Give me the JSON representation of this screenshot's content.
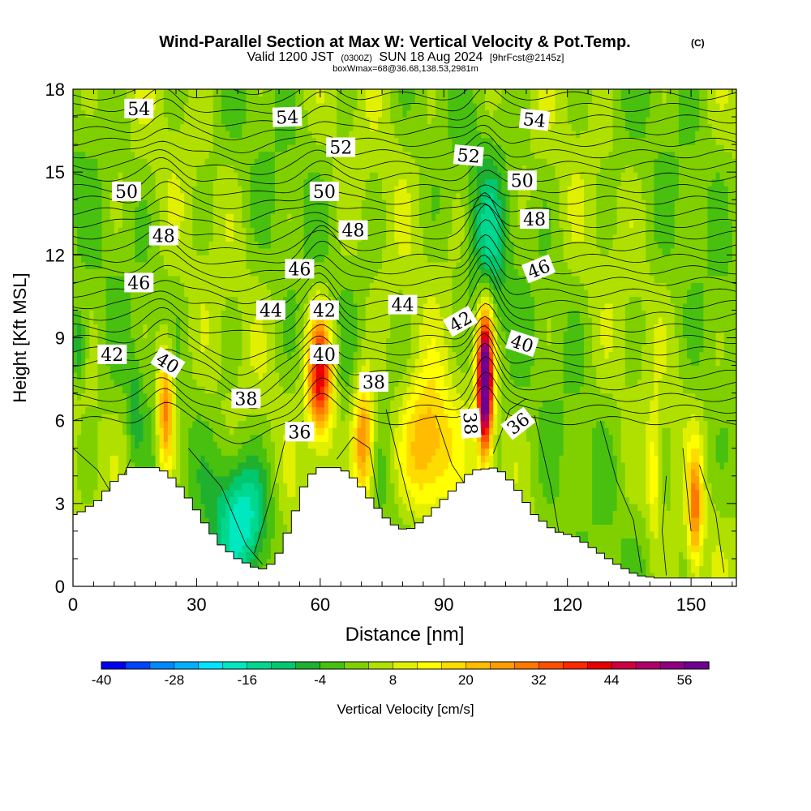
{
  "chart_data": {
    "type": "heatmap",
    "title": "Wind-Parallel Section at Max W: Vertical Velocity & Pot.Temp.",
    "copyright_mark": "(C)",
    "subtitle": {
      "valid_prefix": "Valid 1200 JST",
      "valid_utc": "(0300Z)",
      "valid_date": "SUN 18 Aug 2024",
      "forecast": "[9hrFcst@2145z]"
    },
    "box_info": "boxWmax=68@36.68,138.53,2981m",
    "xlabel": "Distance [nm]",
    "ylabel": "Height [Kft MSL]",
    "xlim": [
      0,
      161
    ],
    "ylim": [
      0,
      18
    ],
    "x_ticks": [
      0,
      30,
      60,
      90,
      120,
      150
    ],
    "y_ticks": [
      0,
      3,
      6,
      9,
      12,
      15,
      18
    ],
    "colorbar": {
      "label": "Vertical Velocity [cm/s]",
      "range": [
        -40,
        60
      ],
      "tick_values": [
        -40,
        -28,
        -16,
        -4,
        8,
        20,
        32,
        44,
        56
      ],
      "colors": [
        "#0000f0",
        "#0044ff",
        "#0088ff",
        "#00b0ff",
        "#00e4ff",
        "#00e8c0",
        "#00d890",
        "#00c870",
        "#20b030",
        "#48c010",
        "#80d000",
        "#b0e000",
        "#e0f000",
        "#ffff00",
        "#ffdc00",
        "#ffbc00",
        "#ff9c00",
        "#ff7800",
        "#ff5000",
        "#ff2800",
        "#e80000",
        "#d00040",
        "#b00068",
        "#900080",
        "#700090"
      ]
    },
    "terrain_profile": [
      {
        "x": 0,
        "h": 2.6
      },
      {
        "x": 5,
        "h": 3.1
      },
      {
        "x": 9,
        "h": 3.8
      },
      {
        "x": 13,
        "h": 4.3
      },
      {
        "x": 20,
        "h": 4.3
      },
      {
        "x": 24,
        "h": 3.8
      },
      {
        "x": 28,
        "h": 3.0
      },
      {
        "x": 31,
        "h": 2.3
      },
      {
        "x": 35,
        "h": 1.5
      },
      {
        "x": 39,
        "h": 1.0
      },
      {
        "x": 43,
        "h": 0.7
      },
      {
        "x": 46,
        "h": 0.6
      },
      {
        "x": 49,
        "h": 1.2
      },
      {
        "x": 52,
        "h": 2.3
      },
      {
        "x": 55,
        "h": 3.6
      },
      {
        "x": 58,
        "h": 4.3
      },
      {
        "x": 64,
        "h": 4.3
      },
      {
        "x": 68,
        "h": 3.8
      },
      {
        "x": 72,
        "h": 3.0
      },
      {
        "x": 76,
        "h": 2.3
      },
      {
        "x": 80,
        "h": 2.0
      },
      {
        "x": 84,
        "h": 2.4
      },
      {
        "x": 88,
        "h": 3.0
      },
      {
        "x": 92,
        "h": 3.6
      },
      {
        "x": 96,
        "h": 4.2
      },
      {
        "x": 102,
        "h": 4.3
      },
      {
        "x": 106,
        "h": 3.7
      },
      {
        "x": 111,
        "h": 2.6
      },
      {
        "x": 116,
        "h": 2.0
      },
      {
        "x": 121,
        "h": 1.8
      },
      {
        "x": 126,
        "h": 1.3
      },
      {
        "x": 131,
        "h": 0.8
      },
      {
        "x": 136,
        "h": 0.4
      },
      {
        "x": 141,
        "h": 0.3
      },
      {
        "x": 150,
        "h": 0.3
      },
      {
        "x": 154,
        "h": 0.3
      },
      {
        "x": 161,
        "h": 0.3
      }
    ],
    "updraft_cores": [
      {
        "x": 22.5,
        "y": 6.5,
        "w_peak": 28,
        "sx": 1.4,
        "sy": 1.6
      },
      {
        "x": 60,
        "y": 7.6,
        "w_peak": 40,
        "sx": 2.2,
        "sy": 1.6
      },
      {
        "x": 70.5,
        "y": 5.3,
        "w_peak": 28,
        "sx": 1.8,
        "sy": 1.6
      },
      {
        "x": 86,
        "y": 5.0,
        "w_peak": 22,
        "sx": 4.5,
        "sy": 1.8
      },
      {
        "x": 100,
        "y": 7.4,
        "w_peak": 68,
        "sx": 1.3,
        "sy": 1.7
      },
      {
        "x": 141,
        "y": 4.0,
        "w_peak": 12,
        "sx": 1.2,
        "sy": 1.5
      },
      {
        "x": 151,
        "y": 2.8,
        "w_peak": 24,
        "sx": 1.2,
        "sy": 1.5
      }
    ],
    "downdraft_cores": [
      {
        "x": 41,
        "y": 2.5,
        "w_peak": -22,
        "sx": 4.5,
        "sy": 1.6
      },
      {
        "x": 1.5,
        "y": 8.7,
        "w_peak": -14,
        "sx": 1.2,
        "sy": 0.9
      },
      {
        "x": 101,
        "y": 12.5,
        "w_peak": -12,
        "sx": 3.0,
        "sy": 2.0
      },
      {
        "x": 15,
        "y": 6.5,
        "w_peak": -8,
        "sx": 1.2,
        "sy": 1.2
      }
    ],
    "theta_contour_labels": [
      {
        "value": "54",
        "x": 16,
        "y": 17.3,
        "angle": 0
      },
      {
        "value": "54",
        "x": 52,
        "y": 17.0,
        "angle": -2
      },
      {
        "value": "54",
        "x": 112,
        "y": 16.9,
        "angle": 6
      },
      {
        "value": "52",
        "x": 65,
        "y": 15.9,
        "angle": 0
      },
      {
        "value": "52",
        "x": 96,
        "y": 15.6,
        "angle": 5
      },
      {
        "value": "50",
        "x": 13,
        "y": 14.3,
        "angle": 0
      },
      {
        "value": "50",
        "x": 61,
        "y": 14.3,
        "angle": 0
      },
      {
        "value": "50",
        "x": 109,
        "y": 14.7,
        "angle": 0
      },
      {
        "value": "48",
        "x": 22,
        "y": 12.7,
        "angle": 0
      },
      {
        "value": "48",
        "x": 68,
        "y": 12.9,
        "angle": 0
      },
      {
        "value": "48",
        "x": 112,
        "y": 13.3,
        "angle": 0
      },
      {
        "value": "46",
        "x": 16,
        "y": 11.0,
        "angle": 0
      },
      {
        "value": "46",
        "x": 55,
        "y": 11.5,
        "angle": 0
      },
      {
        "value": "46",
        "x": 113,
        "y": 11.5,
        "angle": -22
      },
      {
        "value": "44",
        "x": 48,
        "y": 10.0,
        "angle": 0
      },
      {
        "value": "42",
        "x": 61,
        "y": 10.0,
        "angle": 0
      },
      {
        "value": "44",
        "x": 80,
        "y": 10.2,
        "angle": 0
      },
      {
        "value": "42",
        "x": 94,
        "y": 9.6,
        "angle": -30
      },
      {
        "value": "42",
        "x": 9.5,
        "y": 8.4,
        "angle": 0
      },
      {
        "value": "40",
        "x": 23,
        "y": 8.1,
        "angle": 32
      },
      {
        "value": "40",
        "x": 61,
        "y": 8.4,
        "angle": 0
      },
      {
        "value": "40",
        "x": 109,
        "y": 8.8,
        "angle": 18
      },
      {
        "value": "38",
        "x": 73,
        "y": 7.4,
        "angle": 0
      },
      {
        "value": "38",
        "x": 42,
        "y": 6.8,
        "angle": 0
      },
      {
        "value": "38",
        "x": 96.5,
        "y": 5.9,
        "angle": 86
      },
      {
        "value": "36",
        "x": 55,
        "y": 5.6,
        "angle": 0
      },
      {
        "value": "36",
        "x": 108,
        "y": 5.9,
        "angle": -38
      }
    ]
  }
}
